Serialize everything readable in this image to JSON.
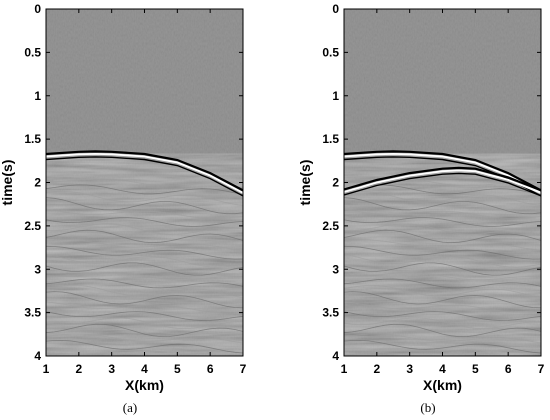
{
  "chart_data": [
    {
      "type": "heatmap",
      "panel_label": "(a)",
      "xlabel": "X(km)",
      "ylabel": "time(s)",
      "xlim": [
        1,
        7
      ],
      "ylim": [
        4,
        0
      ],
      "xticks": [
        "1",
        "2",
        "3",
        "4",
        "5",
        "6",
        "7"
      ],
      "yticks": [
        "0",
        "0.5",
        "1",
        "1.5",
        "2",
        "2.5",
        "3",
        "3.5",
        "4"
      ],
      "colormap": "gray",
      "grid": false,
      "reflector_events": [
        {
          "name": "",
          "x": [
            1.0,
            2.0,
            2.5,
            3.0,
            4.0,
            5.0,
            6.0,
            7.0
          ],
          "time": [
            1.7,
            1.675,
            1.67,
            1.675,
            1.7,
            1.77,
            1.92,
            2.12
          ]
        }
      ]
    },
    {
      "type": "heatmap",
      "panel_label": "(b)",
      "xlabel": "X(km)",
      "ylabel": "time(s)",
      "xlim": [
        1,
        7
      ],
      "ylim": [
        4,
        0
      ],
      "xticks": [
        "1",
        "2",
        "3",
        "4",
        "5",
        "6",
        "7"
      ],
      "yticks": [
        "0",
        "0.5",
        "1",
        "1.5",
        "2",
        "2.5",
        "3",
        "3.5",
        "4"
      ],
      "colormap": "gray",
      "grid": false,
      "reflector_events": [
        {
          "name": "",
          "x": [
            1.0,
            2.0,
            2.5,
            3.0,
            4.0,
            5.0,
            6.0,
            7.0
          ],
          "time": [
            1.7,
            1.675,
            1.67,
            1.675,
            1.7,
            1.77,
            1.92,
            2.12
          ]
        },
        {
          "name": "",
          "x": [
            1.0,
            2.0,
            3.0,
            4.0,
            4.5,
            5.0,
            6.0,
            7.0
          ],
          "time": [
            2.11,
            2.0,
            1.92,
            1.87,
            1.86,
            1.87,
            1.97,
            2.12
          ]
        }
      ]
    }
  ]
}
